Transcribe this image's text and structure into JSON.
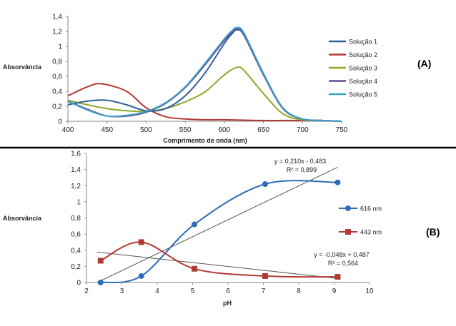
{
  "chart_data": [
    {
      "type": "line",
      "panel_label": "(A)",
      "xlabel": "Comprimento de onda (nm)",
      "ylabel": "Absorvância",
      "xlim": [
        400,
        750
      ],
      "ylim": [
        0,
        1.4
      ],
      "x_ticks": [
        "400",
        "450",
        "500",
        "550",
        "600",
        "650",
        "700",
        "750"
      ],
      "y_ticks": [
        "0",
        "0,2",
        "0,4",
        "0,6",
        "0,8",
        "1",
        "1,2",
        "1,4"
      ],
      "grid": false,
      "legend_position": "right",
      "colors": {
        "Solução 1": "#2e5f9e",
        "Solução 2": "#b33a36",
        "Solução 3": "#8fa828",
        "Solução 4": "#6a4a93",
        "Solução 5": "#3aa3c7"
      },
      "series": [
        {
          "name": "Solução 1",
          "x": [
            400,
            425,
            450,
            475,
            500,
            525,
            550,
            575,
            600,
            610,
            616,
            625,
            650,
            675,
            700,
            725,
            750
          ],
          "y": [
            0.22,
            0.27,
            0.28,
            0.22,
            0.14,
            0.17,
            0.34,
            0.64,
            1.04,
            1.17,
            1.22,
            1.15,
            0.62,
            0.17,
            0.03,
            0.01,
            0
          ]
        },
        {
          "name": "Solução 2",
          "x": [
            400,
            425,
            443,
            475,
            500,
            525,
            550,
            575,
            600,
            650,
            700,
            750
          ],
          "y": [
            0.34,
            0.46,
            0.5,
            0.4,
            0.18,
            0.06,
            0.03,
            0.02,
            0.02,
            0.01,
            0.01,
            0
          ]
        },
        {
          "name": "Solução 3",
          "x": [
            400,
            425,
            450,
            475,
            500,
            525,
            550,
            575,
            600,
            616,
            625,
            650,
            675,
            700,
            725,
            750
          ],
          "y": [
            0.28,
            0.22,
            0.17,
            0.14,
            0.13,
            0.17,
            0.26,
            0.39,
            0.62,
            0.72,
            0.68,
            0.37,
            0.1,
            0.02,
            0.01,
            0
          ]
        },
        {
          "name": "Solução 4",
          "x": [
            400,
            425,
            450,
            475,
            500,
            525,
            550,
            575,
            600,
            610,
            616,
            625,
            650,
            675,
            700,
            725,
            750
          ],
          "y": [
            0.27,
            0.16,
            0.07,
            0.07,
            0.12,
            0.24,
            0.45,
            0.75,
            1.08,
            1.19,
            1.23,
            1.16,
            0.63,
            0.17,
            0.03,
            0.01,
            0
          ]
        },
        {
          "name": "Solução 5",
          "x": [
            400,
            425,
            450,
            475,
            500,
            525,
            550,
            575,
            600,
            610,
            616,
            625,
            650,
            675,
            700,
            725,
            750
          ],
          "y": [
            0.27,
            0.15,
            0.07,
            0.08,
            0.13,
            0.25,
            0.46,
            0.77,
            1.1,
            1.21,
            1.25,
            1.18,
            0.64,
            0.18,
            0.03,
            0.01,
            0
          ]
        }
      ]
    },
    {
      "type": "line",
      "panel_label": "(B)",
      "xlabel": "pH",
      "ylabel": "Absorvância",
      "xlim": [
        2,
        10
      ],
      "ylim": [
        0,
        1.6
      ],
      "x_ticks": [
        "2",
        "3",
        "4",
        "5",
        "6",
        "7",
        "8",
        "9",
        "10"
      ],
      "y_ticks": [
        "0",
        "0,2",
        "0,4",
        "0,6",
        "0,8",
        "1",
        "1,2",
        "1,4",
        "1,6"
      ],
      "grid": false,
      "legend_position": "right",
      "colors": {
        "616 nm": "#2e6cb8",
        "443 nm": "#b03a34",
        "trendline": "#555555"
      },
      "series": [
        {
          "name": "616 nm",
          "marker": "circle",
          "x": [
            2.4,
            3.55,
            5.05,
            7.05,
            9.1
          ],
          "y": [
            0.0,
            0.08,
            0.72,
            1.22,
            1.24
          ]
        },
        {
          "name": "443 nm",
          "marker": "square",
          "x": [
            2.4,
            3.55,
            5.05,
            7.05,
            9.1
          ],
          "y": [
            0.27,
            0.5,
            0.17,
            0.08,
            0.07
          ]
        }
      ],
      "trendlines": [
        {
          "equation": "y = 0,210x - 0,483",
          "r2": "R² = 0,899",
          "slope": 0.21,
          "intercept": -0.483,
          "x_range": [
            2.3,
            9.1
          ]
        },
        {
          "equation": "y = -0,048x + 0,487",
          "r2": "R² = 0,564",
          "slope": -0.048,
          "intercept": 0.487,
          "x_range": [
            2.3,
            9.1
          ]
        }
      ]
    }
  ]
}
